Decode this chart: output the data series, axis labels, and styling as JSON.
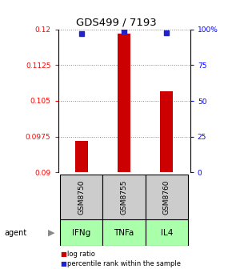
{
  "title": "GDS499 / 7193",
  "samples": [
    "GSM8750",
    "GSM8755",
    "GSM8760"
  ],
  "agents": [
    "IFNg",
    "TNFa",
    "IL4"
  ],
  "log_ratio_values": [
    0.0965,
    0.1192,
    0.107
  ],
  "percentile_ranks": [
    97,
    99,
    98
  ],
  "ylim_left": [
    0.09,
    0.12
  ],
  "ylim_right": [
    0,
    100
  ],
  "yticks_left": [
    0.09,
    0.0975,
    0.105,
    0.1125,
    0.12
  ],
  "yticks_right": [
    0,
    25,
    50,
    75,
    100
  ],
  "ytick_labels_left": [
    "0.09",
    "0.0975",
    "0.105",
    "0.1125",
    "0.12"
  ],
  "ytick_labels_right": [
    "0",
    "25",
    "50",
    "75",
    "100%"
  ],
  "bar_color": "#cc0000",
  "dot_color": "#2222cc",
  "baseline": 0.09,
  "sample_bg_color": "#cccccc",
  "agent_color": "#aaffaa",
  "grid_color": "#888888",
  "legend_bar_label": "log ratio",
  "legend_dot_label": "percentile rank within the sample",
  "bar_width": 0.3
}
